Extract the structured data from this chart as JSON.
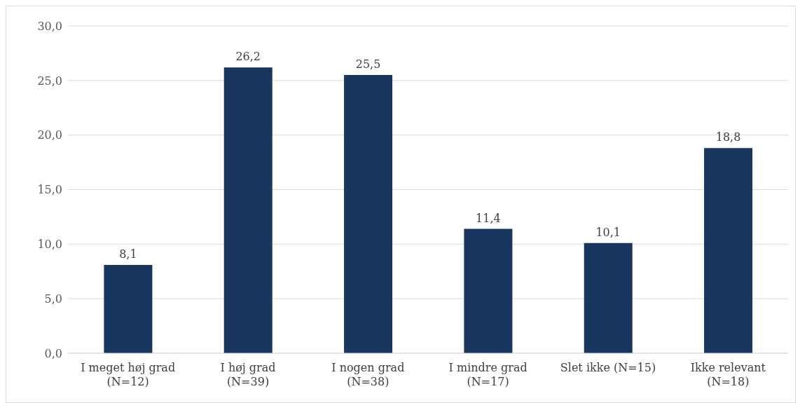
{
  "chart_data": {
    "type": "bar",
    "categories": [
      "I meget høj grad (N=12)",
      "I høj grad (N=39)",
      "I nogen grad (N=38)",
      "I mindre grad (N=17)",
      "Slet ikke (N=15)",
      "Ikke relevant (N=18)"
    ],
    "values": [
      8.1,
      26.2,
      25.5,
      11.4,
      10.1,
      18.8
    ],
    "color": "#17375e",
    "ylim": [
      0,
      30
    ],
    "yticks": [
      {
        "value": 0,
        "label": "0,0"
      },
      {
        "value": 5,
        "label": "5,0"
      },
      {
        "value": 10,
        "label": "10,0"
      },
      {
        "value": 15,
        "label": "15,0"
      },
      {
        "value": 20,
        "label": "20,0"
      },
      {
        "value": 25,
        "label": "25,0"
      },
      {
        "value": 30,
        "label": "30,0"
      }
    ],
    "grid": "y",
    "value_labels": [
      "8,1",
      "26,2",
      "25,5",
      "11,4",
      "10,1",
      "18,8"
    ]
  }
}
